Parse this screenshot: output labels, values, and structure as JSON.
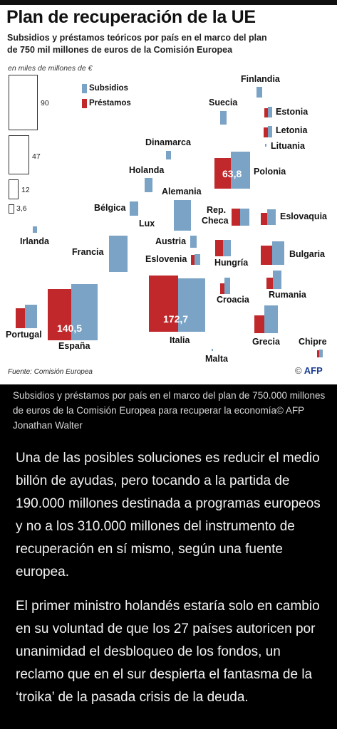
{
  "infographic": {
    "title": "Plan de recuperación de la UE",
    "subtitle_line1": "Subsidios y préstamos teóricos por país en el marco del plan",
    "subtitle_line2": "de 750 mil millones de euros de la Comisión Europea",
    "unit": "en miles de millones de €",
    "scale_refs": [
      "90",
      "47",
      "12",
      "3,6"
    ],
    "legend": {
      "subsidios": "Subsidios",
      "prestamos": "Préstamos"
    },
    "source": "Fuente: Comisión Europea",
    "credit_symbol": "©",
    "credit": "AFP",
    "colors": {
      "subsidios": "#7ba3c5",
      "prestamos": "#c0282b"
    }
  },
  "chart_data": {
    "type": "bar",
    "series": [
      {
        "name": "Subsidios"
      },
      {
        "name": "Préstamos"
      }
    ],
    "countries": {
      "finlandia": "Finlandia",
      "suecia": "Suecia",
      "estonia": "Estonia",
      "letonia": "Letonia",
      "lituania": "Lituania",
      "dinamarca": "Dinamarca",
      "polonia": "Polonia",
      "holanda": "Holanda",
      "alemania": "Alemania",
      "belgica": "Bélgica",
      "lux": "Lux",
      "rep_checa_1": "Rep.",
      "rep_checa_2": "Checa",
      "eslovaquia": "Eslovaquia",
      "irlanda": "Irlanda",
      "austria": "Austria",
      "francia": "Francia",
      "eslovenia": "Eslovenia",
      "hungria": "Hungría",
      "bulgaria": "Bulgaria",
      "rumania": "Rumania",
      "croacia": "Croacia",
      "portugal": "Portugal",
      "espana": "España",
      "italia": "Italia",
      "grecia": "Grecia",
      "chipre": "Chipre",
      "malta": "Malta"
    },
    "labeled_totals": {
      "polonia": "63,8",
      "espana": "140,5",
      "italia": "172,7"
    }
  },
  "caption": "Subsidios y préstamos por país en el marco del plan de 750.000 millones de euros de la Comisión Europea para recuperar la economía© AFP Jonathan Walter",
  "article": {
    "p1": "Una de las posibles soluciones es reducir el medio billón de ayudas, pero tocando a la partida de 190.000 millones destinada a programas europeos y no a los 310.000 millones del instrumento de recuperación en sí mismo, según una fuente europea.",
    "p2": "El primer ministro holandés estaría solo en cambio en su voluntad de que los 27 países autoricen por unanimidad el desbloqueo de los fondos, un reclamo que en el sur despierta el fantasma de la ‘troika’ de la pasada crisis de la deuda."
  }
}
